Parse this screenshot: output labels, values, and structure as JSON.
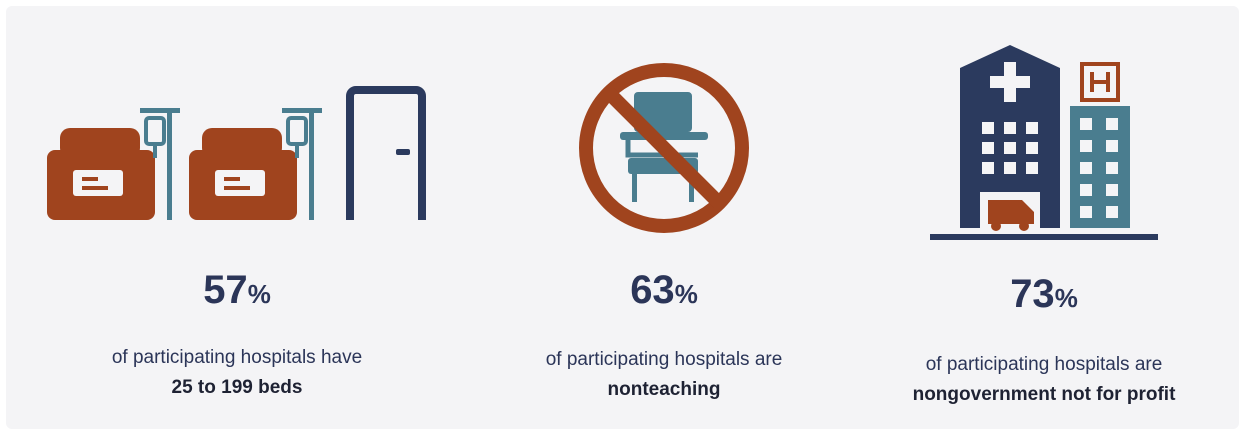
{
  "stats": [
    {
      "value": "57",
      "unit": "%",
      "line1": "of participating hospitals have",
      "line2": "25 to 199 beds"
    },
    {
      "value": "63",
      "unit": "%",
      "line1": "of participating hospitals are",
      "line2": "nonteaching"
    },
    {
      "value": "73",
      "unit": "%",
      "line1": "of participating hospitals are",
      "line2": "nongovernment not for profit"
    }
  ]
}
